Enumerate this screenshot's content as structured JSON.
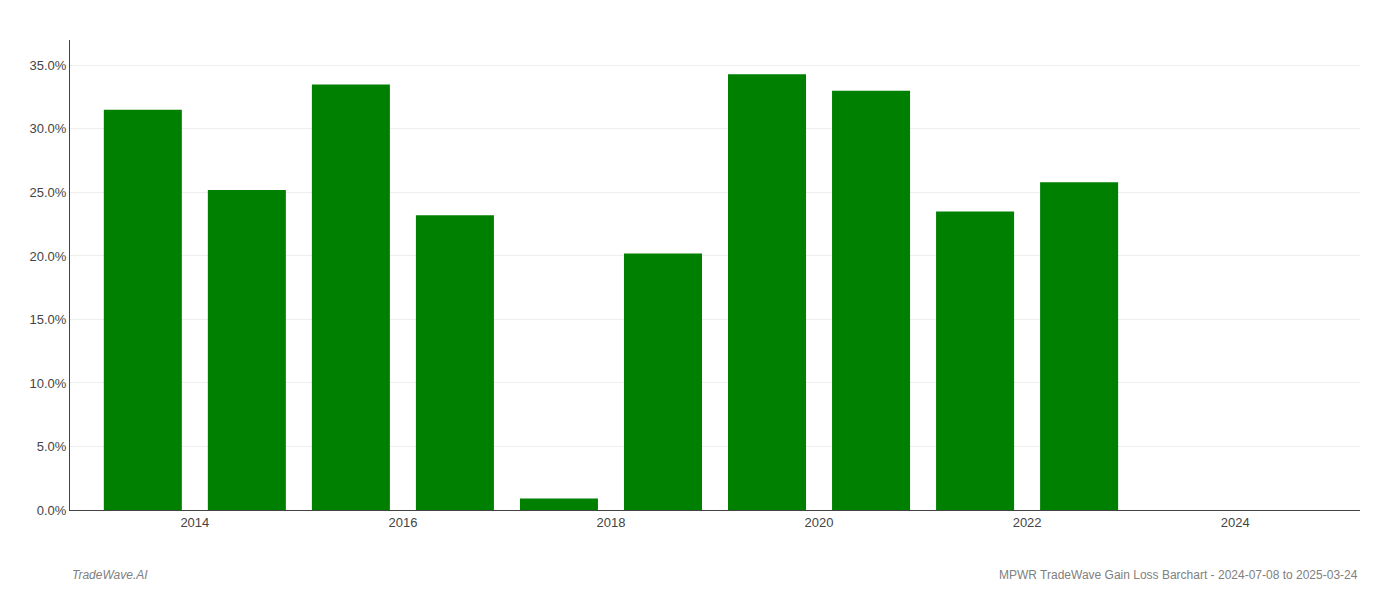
{
  "chart_data": {
    "type": "bar",
    "x": [
      2013,
      2014,
      2015,
      2016,
      2017,
      2018,
      2019,
      2020,
      2021,
      2022,
      2023
    ],
    "values": [
      0.315,
      0.252,
      0.335,
      0.232,
      0.009,
      0.202,
      0.343,
      0.33,
      0.235,
      0.258,
      0.0
    ],
    "color": "#008000",
    "xlim": [
      2012.3,
      2024.7
    ],
    "xticks": [
      {
        "value": 2013.5,
        "label": "2014"
      },
      {
        "value": 2015.5,
        "label": "2016"
      },
      {
        "value": 2017.5,
        "label": "2018"
      },
      {
        "value": 2019.5,
        "label": "2020"
      },
      {
        "value": 2021.5,
        "label": "2022"
      },
      {
        "value": 2023.5,
        "label": "2024"
      }
    ],
    "ylim": [
      0,
      0.37
    ],
    "yticks": [
      {
        "value": 0.0,
        "label": "0.0%"
      },
      {
        "value": 0.05,
        "label": "5.0%"
      },
      {
        "value": 0.1,
        "label": "10.0%"
      },
      {
        "value": 0.15,
        "label": "15.0%"
      },
      {
        "value": 0.2,
        "label": "20.0%"
      },
      {
        "value": 0.25,
        "label": "25.0%"
      },
      {
        "value": 0.3,
        "label": "30.0%"
      },
      {
        "value": 0.35,
        "label": "35.0%"
      }
    ],
    "grid": true,
    "annotations": [
      {
        "text": "TradeWave.AI"
      },
      {
        "text": "MPWR TradeWave Gain Loss Barchart - 2024-07-08 to 2025-03-24"
      }
    ]
  }
}
